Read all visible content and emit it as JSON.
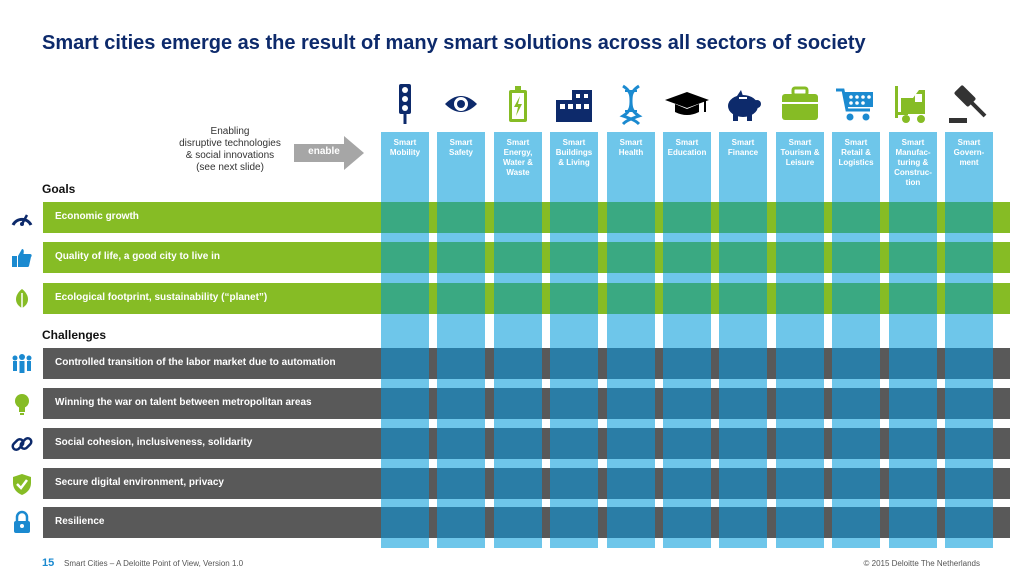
{
  "title": "Smart cities emerge as the result of many smart solutions across all sectors of society",
  "enabling": {
    "lines": [
      "Enabling",
      "disruptive technologies",
      "& social innovations",
      "(see next slide)"
    ],
    "arrow_label": "enable"
  },
  "goals_label": "Goals",
  "challenges_label": "Challenges",
  "goals": [
    {
      "label": "Economic growth",
      "icon": "speedometer-icon"
    },
    {
      "label": "Quality of life, a good city to live in",
      "icon": "thumbs-up-icon"
    },
    {
      "label": "Ecological footprint, sustainability (“planet”)",
      "icon": "leaf-icon"
    }
  ],
  "challenges": [
    {
      "label": "Controlled transition of the labor market due to automation",
      "icon": "people-icon"
    },
    {
      "label": "Winning the war on talent between metropolitan areas",
      "icon": "lightbulb-icon"
    },
    {
      "label": "Social cohesion, inclusiveness, solidarity",
      "icon": "chain-link-icon"
    },
    {
      "label": "Secure digital environment, privacy",
      "icon": "shield-check-icon"
    },
    {
      "label": "Resilience",
      "icon": "padlock-icon"
    }
  ],
  "sectors": [
    {
      "label": [
        "Smart",
        "Mobility"
      ],
      "icon": "traffic-light-icon"
    },
    {
      "label": [
        "Smart",
        "Safety"
      ],
      "icon": "eye-icon"
    },
    {
      "label": [
        "Smart",
        "Energy,",
        "Water &",
        "Waste"
      ],
      "icon": "battery-icon"
    },
    {
      "label": [
        "Smart",
        "Buildings",
        "& Living"
      ],
      "icon": "building-icon"
    },
    {
      "label": [
        "Smart",
        "Health"
      ],
      "icon": "dna-icon"
    },
    {
      "label": [
        "Smart",
        "Education"
      ],
      "icon": "graduation-cap-icon"
    },
    {
      "label": [
        "Smart",
        "Finance"
      ],
      "icon": "piggy-bank-icon"
    },
    {
      "label": [
        "Smart",
        "Tourism &",
        "Leisure"
      ],
      "icon": "suitcase-icon"
    },
    {
      "label": [
        "Smart",
        "Retail &",
        "Logistics"
      ],
      "icon": "shopping-cart-icon"
    },
    {
      "label": [
        "Smart",
        "Manufac-",
        "turing &",
        "Construc-",
        "tion"
      ],
      "icon": "forklift-icon"
    },
    {
      "label": [
        "Smart",
        "Govern-",
        "ment"
      ],
      "icon": "gavel-icon"
    }
  ],
  "colors": {
    "title": "#0d2a6b",
    "goal": "#86bc25",
    "challenge": "#595959",
    "column": "#6ec6ea",
    "goal_overlap": "#3aa982",
    "challenge_overlap": "#2a7da6",
    "icon_dark": "#0d2a6b",
    "icon_blue": "#1b8ad0",
    "icon_green": "#86bc25"
  },
  "footer": {
    "page_number": "15",
    "text": "Smart Cities – A Deloitte Point of View, Version 1.0",
    "copyright": "© 2015 Deloitte The Netherlands"
  }
}
